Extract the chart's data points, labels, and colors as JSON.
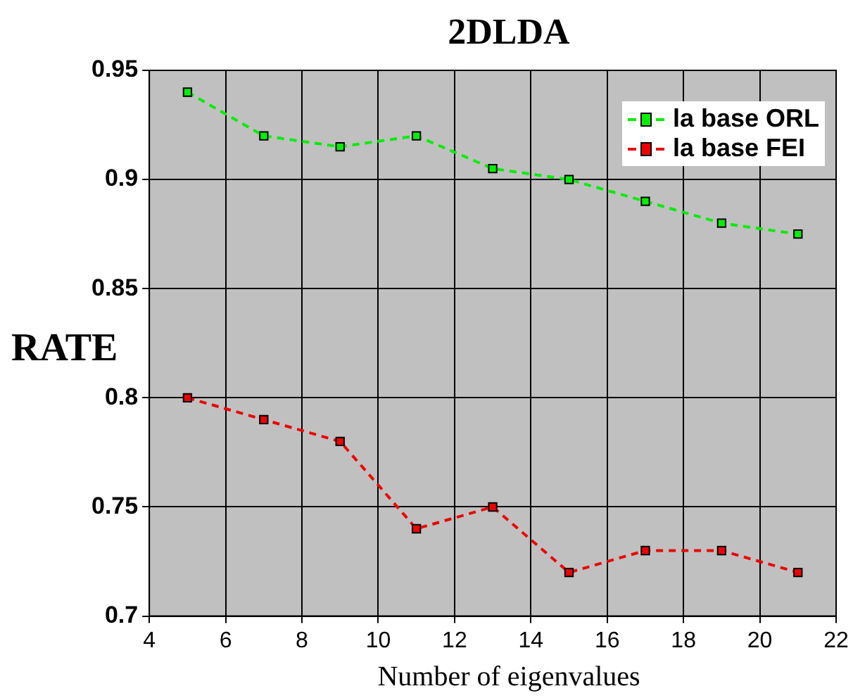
{
  "chart_data": {
    "type": "line",
    "title": "2DLDA",
    "xlabel": "Number of eigenvalues",
    "ylabel": "RATE",
    "x": [
      5,
      7,
      9,
      11,
      13,
      15,
      17,
      19,
      21
    ],
    "series": [
      {
        "name": "la base ORL",
        "color": "#00ee00",
        "values": [
          0.94,
          0.92,
          0.915,
          0.92,
          0.905,
          0.9,
          0.89,
          0.88,
          0.875
        ]
      },
      {
        "name": "la base FEI",
        "color": "#ee0000",
        "values": [
          0.8,
          0.79,
          0.78,
          0.74,
          0.75,
          0.72,
          0.73,
          0.73,
          0.72
        ]
      }
    ],
    "xlim": [
      4,
      22
    ],
    "xticks": [
      4,
      6,
      8,
      10,
      12,
      14,
      16,
      18,
      20,
      22
    ],
    "ylim": [
      0.7,
      0.95
    ],
    "yticks": [
      0.7,
      0.75,
      0.8,
      0.85,
      0.9,
      0.95
    ],
    "grid": true,
    "legend": "top right",
    "marker": "square",
    "line_style": "dashed"
  }
}
